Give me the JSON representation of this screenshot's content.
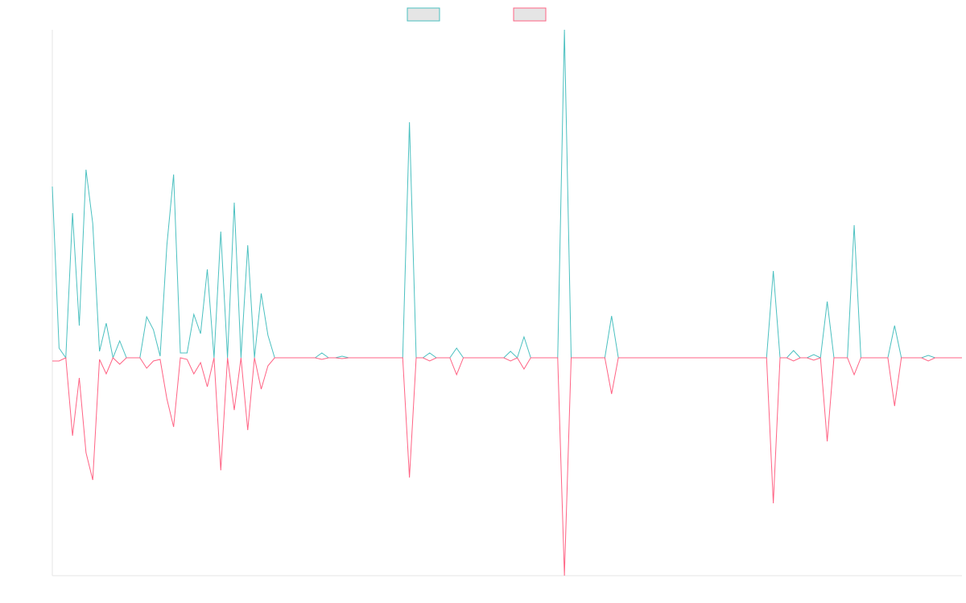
{
  "chart_data": {
    "type": "line",
    "series": [
      {
        "color": "#4bc0c0",
        "values": [
          213,
          12,
          0,
          180,
          40,
          234,
          167,
          8,
          43,
          0,
          21,
          0,
          0,
          0,
          51,
          35,
          2,
          140,
          228,
          6,
          6,
          54,
          30,
          110,
          0,
          157,
          0,
          193,
          0,
          140,
          0,
          80,
          28,
          0,
          0,
          0,
          0,
          0,
          0,
          0,
          6,
          0,
          0,
          2,
          0,
          0,
          0,
          0,
          0,
          0,
          0,
          0,
          0,
          293,
          0,
          0,
          6,
          0,
          0,
          0,
          12,
          0,
          0,
          0,
          0,
          0,
          0,
          0,
          8,
          0,
          26,
          0,
          0,
          0,
          0,
          0,
          408,
          0,
          0,
          0,
          0,
          0,
          0,
          52,
          0,
          0,
          0,
          0,
          0,
          0,
          0,
          0,
          0,
          0,
          0,
          0,
          0,
          0,
          0,
          0,
          0,
          0,
          0,
          0,
          0,
          0,
          0,
          108,
          0,
          0,
          9,
          0,
          0,
          4,
          0,
          70,
          0,
          0,
          0,
          165,
          0,
          0,
          0,
          0,
          0,
          40,
          0,
          0,
          0,
          0,
          3,
          0,
          0,
          0,
          0,
          0
        ]
      },
      {
        "color": "#ff6384",
        "values": [
          -4,
          -4,
          0,
          -97,
          -25,
          -118,
          -152,
          -2,
          -20,
          0,
          -8,
          0,
          0,
          0,
          -13,
          -4,
          -2,
          -51,
          -86,
          0,
          -2,
          -20,
          -6,
          -36,
          0,
          -140,
          0,
          -65,
          0,
          -90,
          0,
          -39,
          -10,
          0,
          0,
          0,
          0,
          0,
          0,
          0,
          -2,
          0,
          0,
          -1,
          0,
          0,
          0,
          0,
          0,
          0,
          0,
          0,
          0,
          -149,
          0,
          0,
          -4,
          0,
          0,
          0,
          -21,
          0,
          0,
          0,
          0,
          0,
          0,
          0,
          -4,
          0,
          -14,
          0,
          0,
          0,
          0,
          0,
          -271,
          0,
          0,
          0,
          0,
          0,
          0,
          -45,
          0,
          0,
          0,
          0,
          0,
          0,
          0,
          0,
          0,
          0,
          0,
          0,
          0,
          0,
          0,
          0,
          0,
          0,
          0,
          0,
          0,
          0,
          0,
          -181,
          0,
          0,
          -4,
          0,
          0,
          -3,
          0,
          -104,
          0,
          0,
          0,
          -21,
          0,
          0,
          0,
          0,
          0,
          -60,
          0,
          0,
          0,
          0,
          -4,
          0,
          0,
          0,
          0,
          0
        ]
      }
    ],
    "ylim": [
      -271,
      408
    ],
    "legend": "top"
  }
}
